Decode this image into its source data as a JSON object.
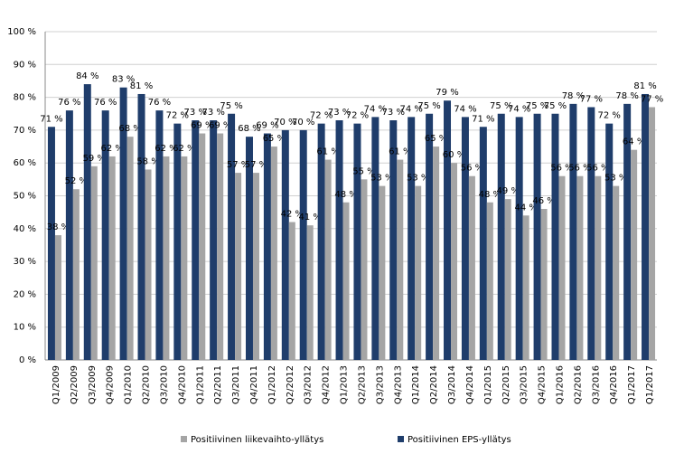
{
  "chart_data": {
    "type": "bar",
    "categories": [
      "Q1/2009",
      "Q2/2009",
      "Q3/2009",
      "Q4/2009",
      "Q1/2010",
      "Q2/2010",
      "Q3/2010",
      "Q4/2010",
      "Q1/2011",
      "Q2/2011",
      "Q3/2011",
      "Q4/2011",
      "Q1/2012",
      "Q2/2012",
      "Q3/2012",
      "Q4/2012",
      "Q1/2013",
      "Q2/2013",
      "Q3/2013",
      "Q4/2013",
      "Q1/2014",
      "Q2/2014",
      "Q3/2014",
      "Q4/2014",
      "Q1/2015",
      "Q2/2015",
      "Q3/2015",
      "Q4/2015",
      "Q1/2016",
      "Q2/2016",
      "Q3/2016",
      "Q4/2016",
      "Q1/2017",
      "Q1/2017"
    ],
    "series": [
      {
        "name": "Positiivinen liikevaihto-yllätys",
        "color": "#a5a5a5",
        "values": [
          38,
          52,
          59,
          62,
          68,
          58,
          62,
          62,
          69,
          69,
          57,
          57,
          65,
          42,
          41,
          61,
          48,
          55,
          53,
          61,
          53,
          65,
          60,
          56,
          48,
          49,
          44,
          46,
          56,
          56,
          56,
          53,
          64,
          77
        ],
        "value_labels": [
          "38 %",
          "52 %",
          "59 %",
          "62 %",
          "68 %",
          "58 %",
          "62 %",
          "62 %",
          "69 %",
          "69 %",
          "57 %",
          "57 %",
          "65 %",
          "42 %",
          "41 %",
          "61 %",
          "48 %",
          "55 %",
          "53 %",
          "61 %",
          "53 %",
          "65 %",
          "60 %",
          "56 %",
          "48 %",
          "49 %",
          "44 %",
          "46 %",
          "56 %",
          "56 %",
          "56 %",
          "53 %",
          "64 %",
          "77 %"
        ]
      },
      {
        "name": "Positiivinen EPS-yllätys",
        "color": "#1f3d6b",
        "values": [
          71,
          76,
          84,
          76,
          83,
          81,
          76,
          72,
          73,
          73,
          75,
          68,
          69,
          70,
          70,
          72,
          73,
          72,
          74,
          73,
          74,
          75,
          79,
          74,
          71,
          75,
          74,
          75,
          75,
          78,
          77,
          72,
          78,
          81
        ],
        "value_labels": [
          "71 %",
          "76 %",
          "84 %",
          "76 %",
          "83 %",
          "81 %",
          "76 %",
          "72 %",
          "73 %",
          "73 %",
          "75 %",
          "68 %",
          "69 %",
          "70 %",
          "70 %",
          "72 %",
          "73 %",
          "72 %",
          "74 %",
          "73 %",
          "74 %",
          "75 %",
          "79 %",
          "74 %",
          "71 %",
          "75 %",
          "74 %",
          "75 %",
          "75 %",
          "78 %",
          "77 %",
          "72 %",
          "78 %",
          "81 %"
        ]
      }
    ],
    "ylim": [
      0,
      100
    ],
    "yticks": [
      {
        "value": 0,
        "label": "0 %"
      },
      {
        "value": 10,
        "label": "10 %"
      },
      {
        "value": 20,
        "label": "20 %"
      },
      {
        "value": 30,
        "label": "30 %"
      },
      {
        "value": 40,
        "label": "40 %"
      },
      {
        "value": 50,
        "label": "50 %"
      },
      {
        "value": 60,
        "label": "60 %"
      },
      {
        "value": 70,
        "label": "70 %"
      },
      {
        "value": 80,
        "label": "80 %"
      },
      {
        "value": 90,
        "label": "90 %"
      },
      {
        "value": 100,
        "label": "100 %"
      }
    ],
    "grid": true,
    "legend": "bottom"
  }
}
